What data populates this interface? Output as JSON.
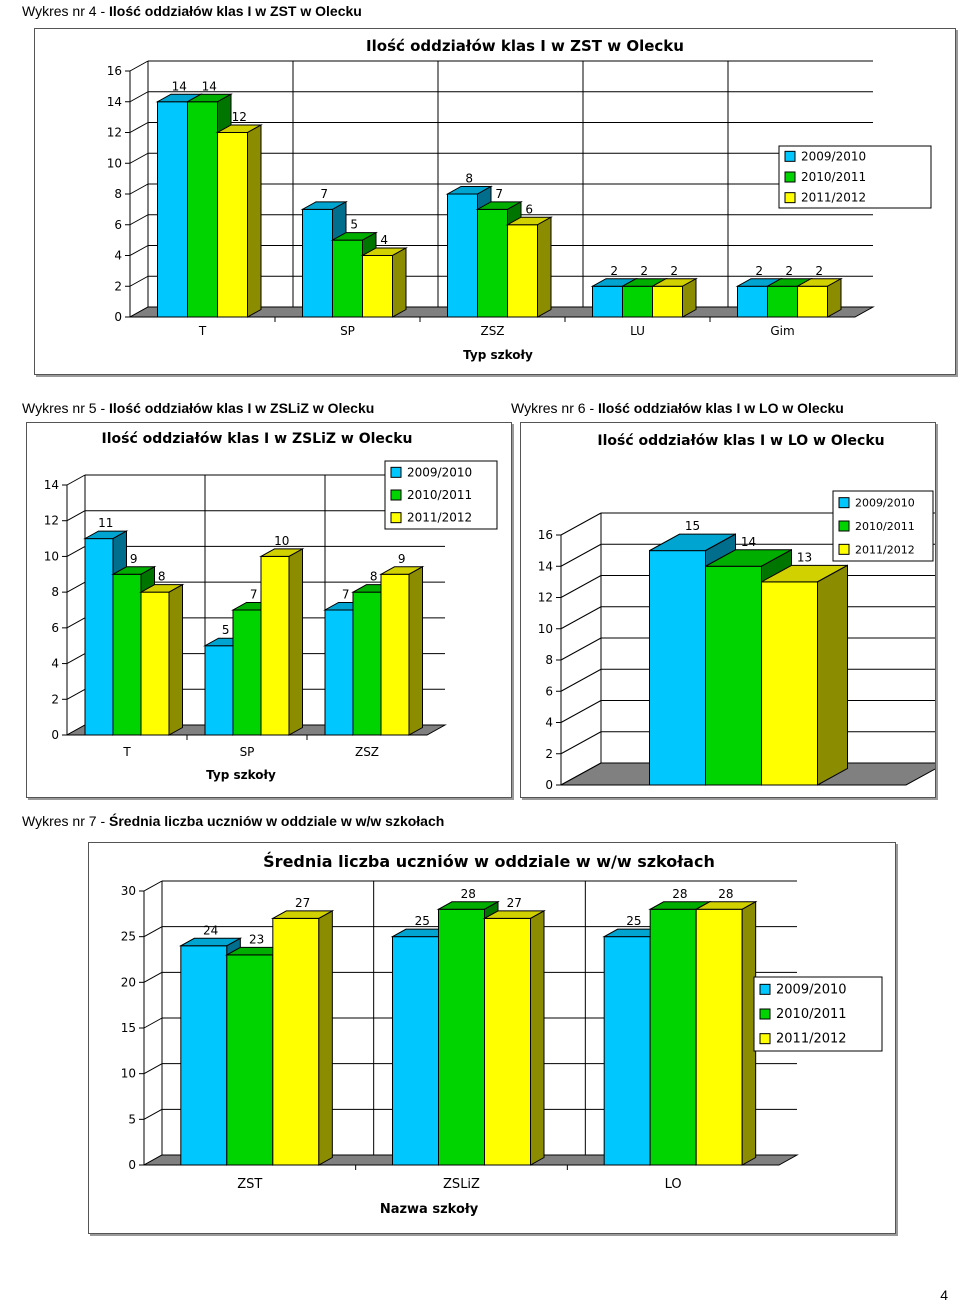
{
  "page": {
    "number": "4"
  },
  "colors": {
    "s1": "#00c8ff",
    "s2": "#00d400",
    "s3": "#ffff00"
  },
  "chart_data": [
    {
      "id": "c4",
      "type": "bar",
      "caption_prefix": "Wykres nr 4 - ",
      "caption_bold": "Ilość oddziałów klas I w ZST w Olecku",
      "title": "Ilość oddziałów klas I w ZST w Olecku",
      "xlabel": "Typ szkoły",
      "ylabel": "",
      "categories": [
        "T",
        "SP",
        "ZSZ",
        "LU",
        "Gim"
      ],
      "series": [
        {
          "name": "2009/2010",
          "values": [
            14,
            7,
            8,
            2,
            2
          ]
        },
        {
          "name": "2010/2011",
          "values": [
            14,
            5,
            7,
            2,
            2
          ]
        },
        {
          "name": "2011/2012",
          "values": [
            12,
            4,
            6,
            2,
            2
          ]
        }
      ],
      "ylim": [
        0,
        16
      ],
      "yticks": [
        0,
        2,
        4,
        6,
        8,
        10,
        12,
        14,
        16
      ],
      "legend": "right",
      "grid": true,
      "data_labels": true
    },
    {
      "id": "c5",
      "type": "bar",
      "caption_prefix": "Wykres nr 5 - ",
      "caption_bold": "Ilość oddziałów klas I w ZSLiZ w Olecku",
      "title": "Ilość oddziałów klas I w ZSLiZ w Olecku",
      "xlabel": "Typ szkoły",
      "ylabel": "",
      "categories": [
        "T",
        "SP",
        "ZSZ"
      ],
      "series": [
        {
          "name": "2009/2010",
          "values": [
            11,
            5,
            7
          ]
        },
        {
          "name": "2010/2011",
          "values": [
            9,
            7,
            8
          ]
        },
        {
          "name": "2011/2012",
          "values": [
            8,
            10,
            9
          ]
        }
      ],
      "ylim": [
        0,
        14
      ],
      "yticks": [
        0,
        2,
        4,
        6,
        8,
        10,
        12,
        14
      ],
      "legend": "top-right",
      "grid": true,
      "data_labels": true
    },
    {
      "id": "c6",
      "type": "bar",
      "caption_prefix": "Wykres nr 6 - ",
      "caption_bold": "Ilość oddziałów klas I w LO w Olecku",
      "title": "Ilość oddziałów klas I w LO w Olecku",
      "xlabel": "",
      "ylabel": "",
      "categories": [
        ""
      ],
      "series": [
        {
          "name": "2009/2010",
          "values": [
            15
          ]
        },
        {
          "name": "2010/2011",
          "values": [
            14
          ]
        },
        {
          "name": "2011/2012",
          "values": [
            13
          ]
        }
      ],
      "ylim": [
        0,
        16
      ],
      "yticks": [
        0,
        2,
        4,
        6,
        8,
        10,
        12,
        14,
        16
      ],
      "legend": "top-right",
      "grid": true,
      "data_labels": true
    },
    {
      "id": "c7",
      "type": "bar",
      "caption_prefix": "Wykres nr 7 - ",
      "caption_bold": "Średnia liczba uczniów w oddziale w w/w szkołach",
      "title": "Średnia liczba uczniów w oddziale w w/w szkołach",
      "xlabel": "Nazwa szkoły",
      "ylabel": "",
      "categories": [
        "ZST",
        "ZSLiZ",
        "LO"
      ],
      "series": [
        {
          "name": "2009/2010",
          "values": [
            24,
            25,
            25
          ]
        },
        {
          "name": "2010/2011",
          "values": [
            23,
            28,
            28
          ]
        },
        {
          "name": "2011/2012",
          "values": [
            27,
            27,
            28
          ]
        }
      ],
      "ylim": [
        0,
        30
      ],
      "yticks": [
        0,
        5,
        10,
        15,
        20,
        25,
        30
      ],
      "legend": "right",
      "grid": true,
      "data_labels": true
    }
  ]
}
